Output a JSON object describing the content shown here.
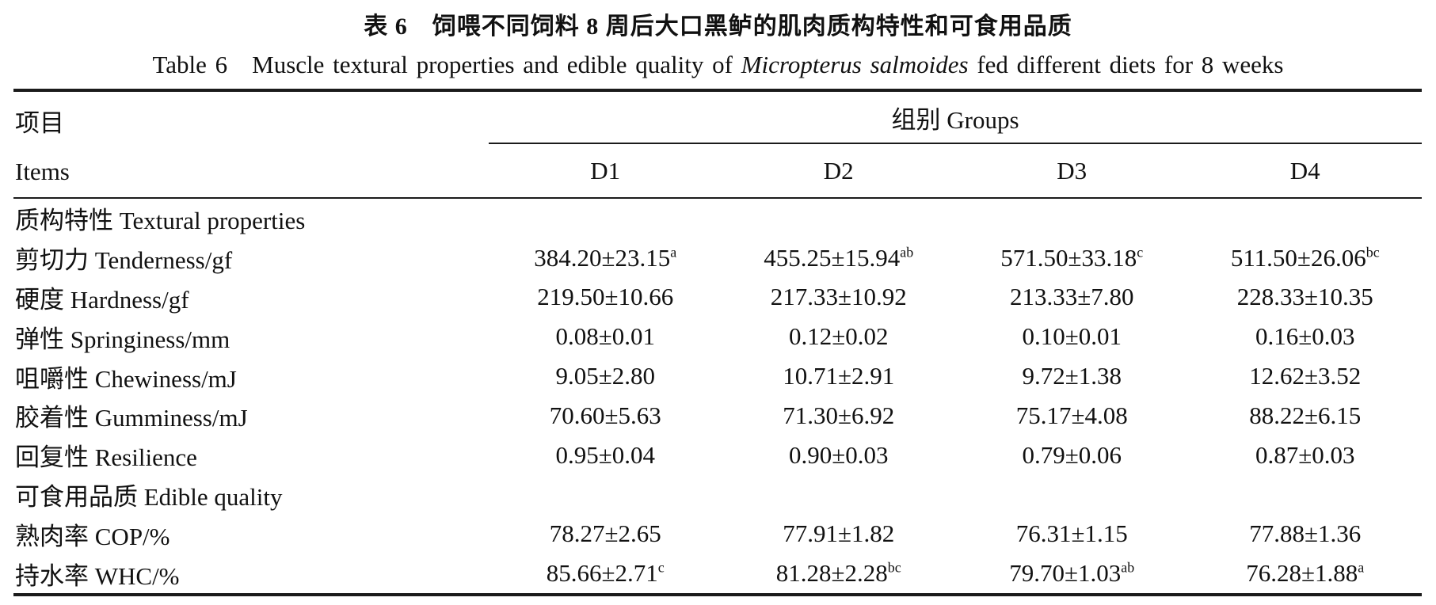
{
  "page": {
    "background_color": "#ffffff",
    "text_color": "#111111",
    "rule_color": "#1b1b1b"
  },
  "titles": {
    "zh": "表 6　饲喂不同饲料 8 周后大口黑鲈的肌肉质构特性和可食用品质",
    "en_prefix": "Table 6　Muscle textural properties and edible quality of ",
    "en_italic": "Micropterus salmoides",
    "en_suffix": " fed different diets for 8 weeks"
  },
  "table": {
    "header": {
      "items_zh": "项目",
      "items_en": "Items",
      "groups_label": "组别 Groups",
      "group_columns": [
        "D1",
        "D2",
        "D3",
        "D4"
      ]
    },
    "rows": [
      {
        "type": "section",
        "label": "质构特性 Textural properties",
        "values": []
      },
      {
        "type": "data",
        "label": "剪切力 Tenderness/gf",
        "values": [
          {
            "text": "384.20±23.15",
            "sup": "a"
          },
          {
            "text": "455.25±15.94",
            "sup": "ab"
          },
          {
            "text": "571.50±33.18",
            "sup": "c"
          },
          {
            "text": "511.50±26.06",
            "sup": "bc"
          }
        ]
      },
      {
        "type": "data",
        "label": "硬度 Hardness/gf",
        "values": [
          {
            "text": "219.50±10.66",
            "sup": ""
          },
          {
            "text": "217.33±10.92",
            "sup": ""
          },
          {
            "text": "213.33±7.80",
            "sup": ""
          },
          {
            "text": "228.33±10.35",
            "sup": ""
          }
        ]
      },
      {
        "type": "data",
        "label": "弹性 Springiness/mm",
        "values": [
          {
            "text": "0.08±0.01",
            "sup": ""
          },
          {
            "text": "0.12±0.02",
            "sup": ""
          },
          {
            "text": "0.10±0.01",
            "sup": ""
          },
          {
            "text": "0.16±0.03",
            "sup": ""
          }
        ]
      },
      {
        "type": "data",
        "label": "咀嚼性 Chewiness/mJ",
        "values": [
          {
            "text": "9.05±2.80",
            "sup": ""
          },
          {
            "text": "10.71±2.91",
            "sup": ""
          },
          {
            "text": "9.72±1.38",
            "sup": ""
          },
          {
            "text": "12.62±3.52",
            "sup": ""
          }
        ]
      },
      {
        "type": "data",
        "label": "胶着性 Gumminess/mJ",
        "values": [
          {
            "text": "70.60±5.63",
            "sup": ""
          },
          {
            "text": "71.30±6.92",
            "sup": ""
          },
          {
            "text": "75.17±4.08",
            "sup": ""
          },
          {
            "text": "88.22±6.15",
            "sup": ""
          }
        ]
      },
      {
        "type": "data",
        "label": "回复性 Resilience",
        "values": [
          {
            "text": "0.95±0.04",
            "sup": ""
          },
          {
            "text": "0.90±0.03",
            "sup": ""
          },
          {
            "text": "0.79±0.06",
            "sup": ""
          },
          {
            "text": "0.87±0.03",
            "sup": ""
          }
        ]
      },
      {
        "type": "section",
        "label": "可食用品质 Edible quality",
        "values": []
      },
      {
        "type": "data",
        "label": "熟肉率 COP/%",
        "values": [
          {
            "text": "78.27±2.65",
            "sup": ""
          },
          {
            "text": "77.91±1.82",
            "sup": ""
          },
          {
            "text": "76.31±1.15",
            "sup": ""
          },
          {
            "text": "77.88±1.36",
            "sup": ""
          }
        ]
      },
      {
        "type": "data",
        "label": "持水率 WHC/%",
        "values": [
          {
            "text": "85.66±2.71",
            "sup": "c"
          },
          {
            "text": "81.28±2.28",
            "sup": "bc"
          },
          {
            "text": "79.70±1.03",
            "sup": "ab"
          },
          {
            "text": "76.28±1.88",
            "sup": "a"
          }
        ]
      }
    ]
  }
}
